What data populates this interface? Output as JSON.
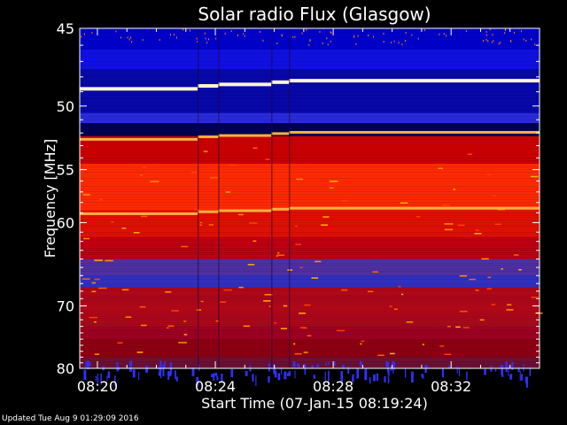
{
  "chart_data": {
    "type": "heatmap",
    "title": "Solar radio Flux (Glasgow)",
    "xlabel": "Start Time (07-Jan-15 08:19:24)",
    "ylabel": "Frequency [MHz]",
    "x_ticks": [
      "08:20",
      "08:24",
      "08:28",
      "08:32"
    ],
    "x_tick_minutes": [
      20,
      24,
      28,
      32
    ],
    "x_range_minutes": [
      19.4,
      35.0
    ],
    "y_ticks": [
      45,
      50,
      55,
      60,
      70,
      80
    ],
    "y_range": [
      45,
      80
    ],
    "y_scale": "reciprocal",
    "colormap": [
      "#000080",
      "#0000ff",
      "#7f0000",
      "#ff0000",
      "#ffa000",
      "#ffffff"
    ],
    "bright_lines_mhz": [
      48.8,
      52.5,
      59.1
    ],
    "segment_breaks_minutes": [
      23.4,
      24.1,
      25.9,
      26.5
    ]
  },
  "footer": "Updated Tue Aug  9 01:29:09 2016"
}
